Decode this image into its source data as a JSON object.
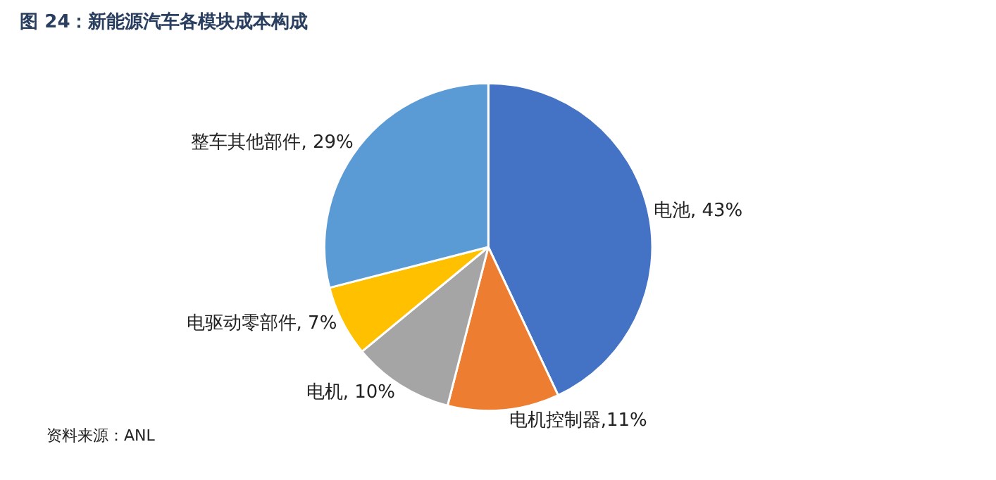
{
  "chart_data": {
    "type": "pie",
    "title": "图 24：新能源汽车各模块成本构成",
    "categories": [
      "电池, 43%",
      "电机控制器,11%",
      "电机, 10%",
      "电驱动零部件, 7%",
      "整车其他部件, 29%"
    ],
    "values": [
      43,
      11,
      10,
      7,
      29
    ],
    "colors": [
      "#4472c4",
      "#ed7d31",
      "#a5a5a5",
      "#ffc000",
      "#5b9bd5"
    ],
    "annotations": [
      "资料来源：ANL"
    ],
    "legend": false
  }
}
